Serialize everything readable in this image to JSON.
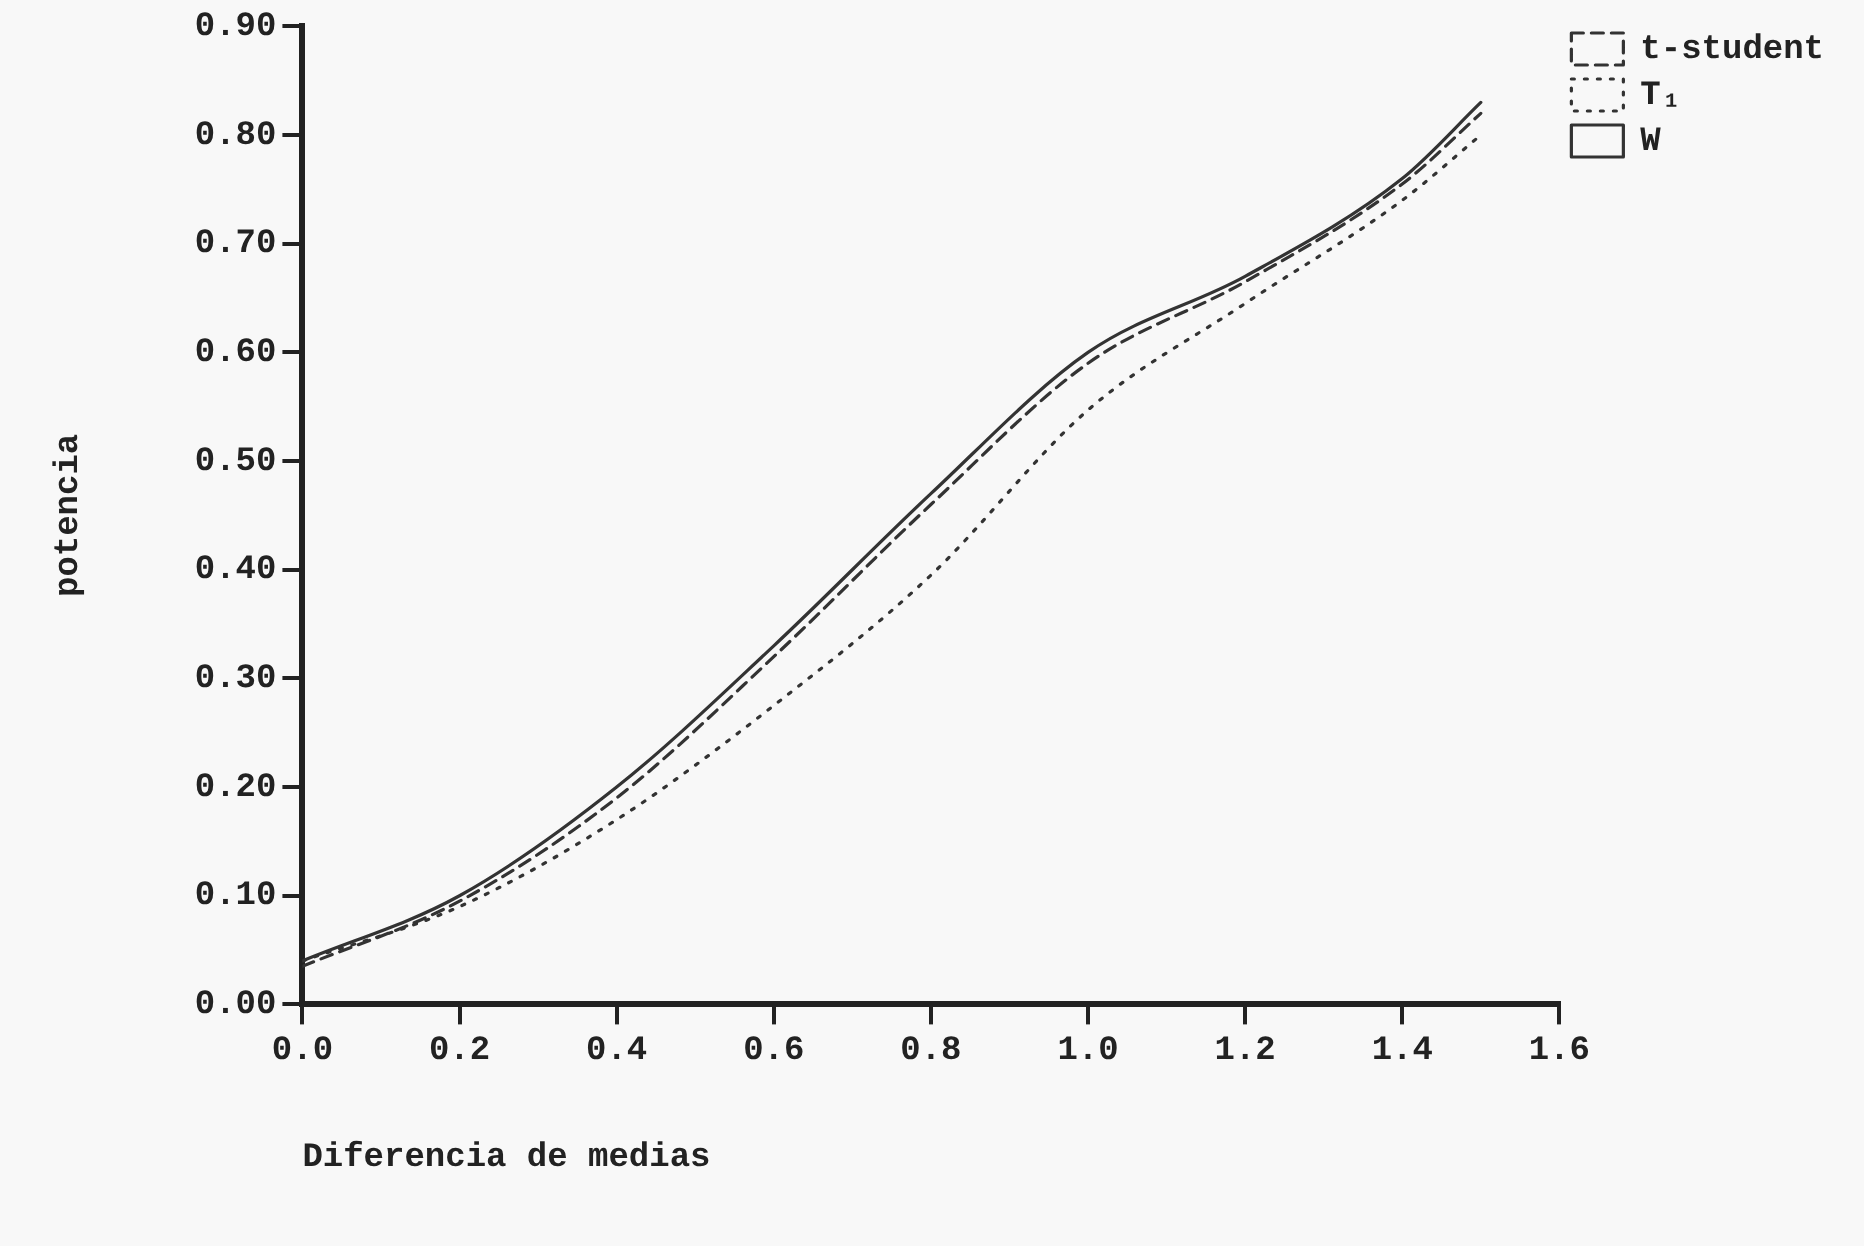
{
  "chart_data": {
    "type": "line",
    "xlabel": "Diferencia de medias",
    "ylabel": "potencia",
    "x": [
      0,
      0.2,
      0.4,
      0.6,
      0.8,
      1.0,
      1.2,
      1.4,
      1.5
    ],
    "series": [
      {
        "name": "t-student",
        "color": "#333333",
        "line_style": "dashed",
        "values": [
          0.035,
          0.095,
          0.19,
          0.32,
          0.46,
          0.59,
          0.665,
          0.755,
          0.82
        ]
      },
      {
        "name": "T₁",
        "color": "#333333",
        "line_style": "dotted",
        "values": [
          0.04,
          0.09,
          0.17,
          0.275,
          0.395,
          0.547,
          0.645,
          0.74,
          0.8
        ]
      },
      {
        "name": "W",
        "color": "#333333",
        "line_style": "solid",
        "values": [
          0.04,
          0.1,
          0.2,
          0.33,
          0.47,
          0.6,
          0.67,
          0.76,
          0.83
        ]
      }
    ],
    "xlim": [
      0,
      1.6
    ],
    "xticks": [
      {
        "value": 0,
        "label": "0.0"
      },
      {
        "value": 0.2,
        "label": "0.2"
      },
      {
        "value": 0.4,
        "label": "0.4"
      },
      {
        "value": 0.6,
        "label": "0.6"
      },
      {
        "value": 0.8,
        "label": "0.8"
      },
      {
        "value": 1.0,
        "label": "1.0"
      },
      {
        "value": 1.2,
        "label": "1.2"
      },
      {
        "value": 1.4,
        "label": "1.4"
      },
      {
        "value": 1.6,
        "label": "1.6"
      }
    ],
    "ylim": [
      0,
      0.9
    ],
    "yticks": [
      {
        "value": 0,
        "label": "0.00"
      },
      {
        "value": 0.1,
        "label": "0.10"
      },
      {
        "value": 0.2,
        "label": "0.20"
      },
      {
        "value": 0.3,
        "label": "0.30"
      },
      {
        "value": 0.4,
        "label": "0.40"
      },
      {
        "value": 0.5,
        "label": "0.50"
      },
      {
        "value": 0.6,
        "label": "0.60"
      },
      {
        "value": 0.7,
        "label": "0.70"
      },
      {
        "value": 0.8,
        "label": "0.80"
      },
      {
        "value": 0.9,
        "label": "0.90"
      }
    ],
    "grid": false,
    "legend": "top right",
    "marker": "none"
  }
}
